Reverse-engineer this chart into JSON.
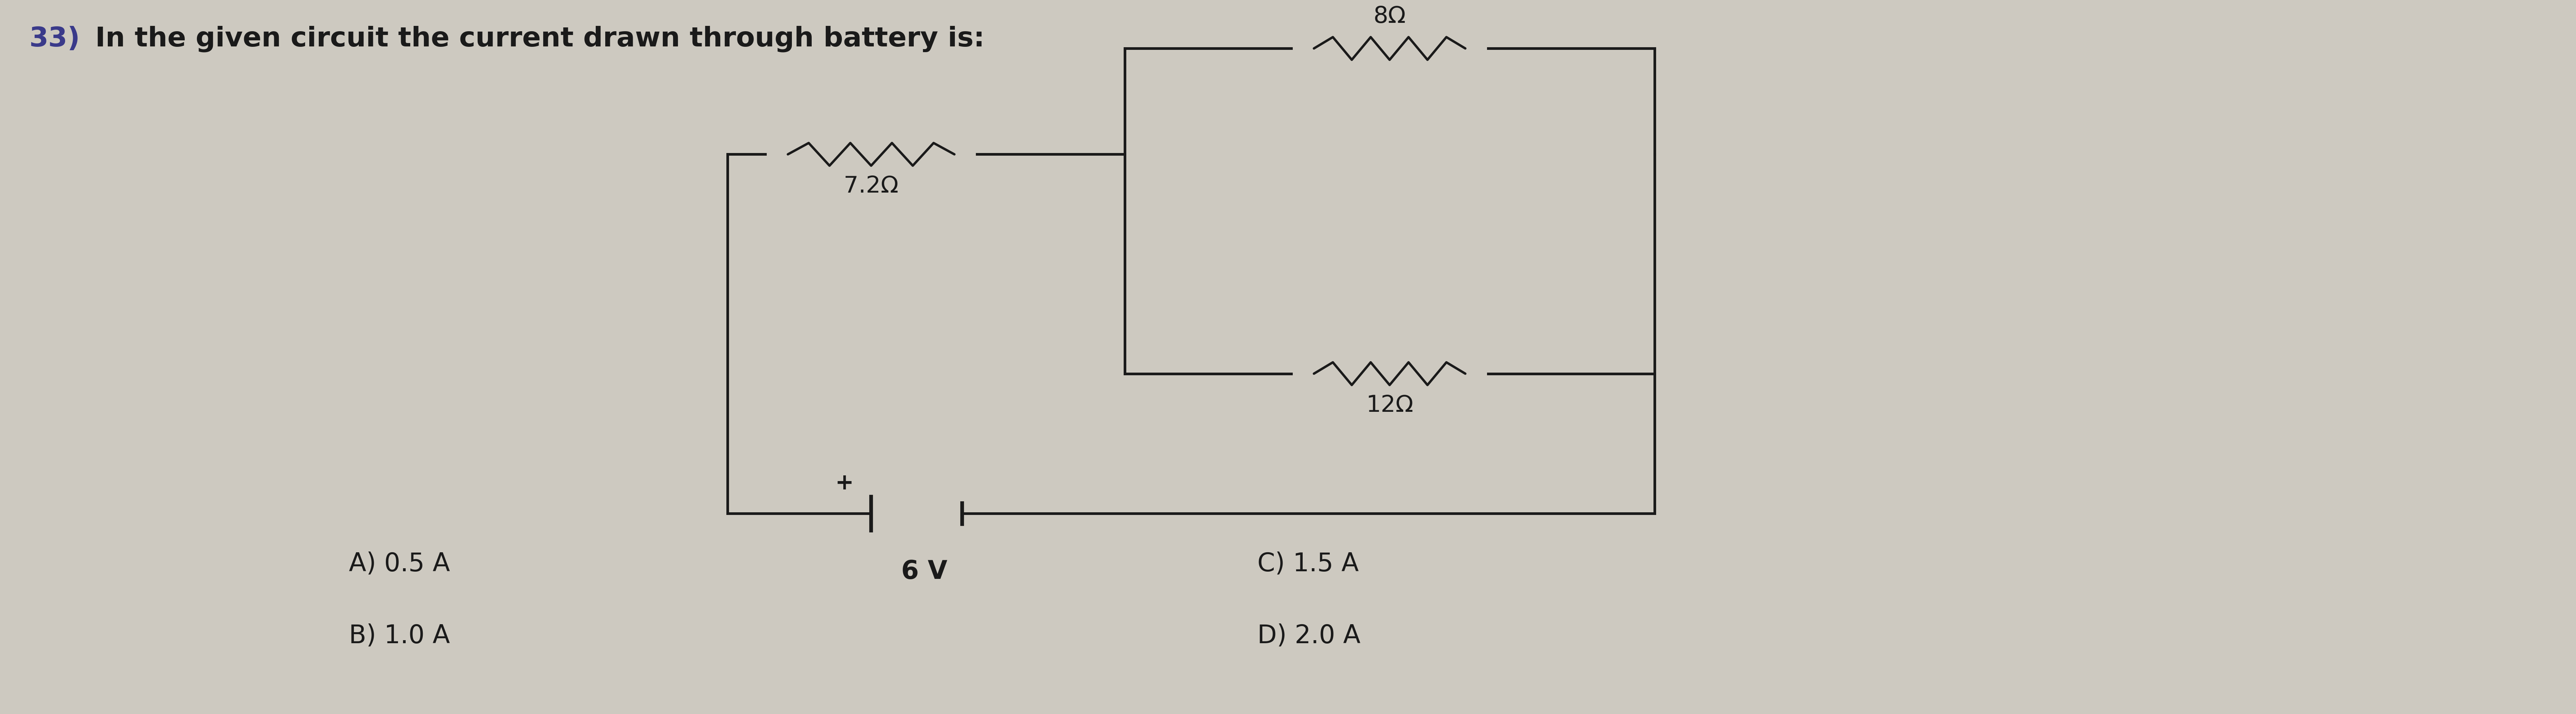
{
  "title_number": "33)",
  "title_text": "In the given circuit the current drawn through battery is:",
  "title_fontsize": 52,
  "bg_color": "#cdc9c0",
  "circuit_color": "#1a1a1a",
  "text_color": "#1a1a1a",
  "resistor_72_label": "7.2Ω",
  "resistor_8_label": "8Ω",
  "resistor_12_label": "12Ω",
  "battery_label": "6 V",
  "options": [
    "A) 0.5 A",
    "B) 1.0 A",
    "C) 1.5 A",
    "D) 2.0 A"
  ],
  "option_fontsize": 48,
  "label_fontsize": 44,
  "circuit_lw": 5.0,
  "resistor_lw": 4.5
}
